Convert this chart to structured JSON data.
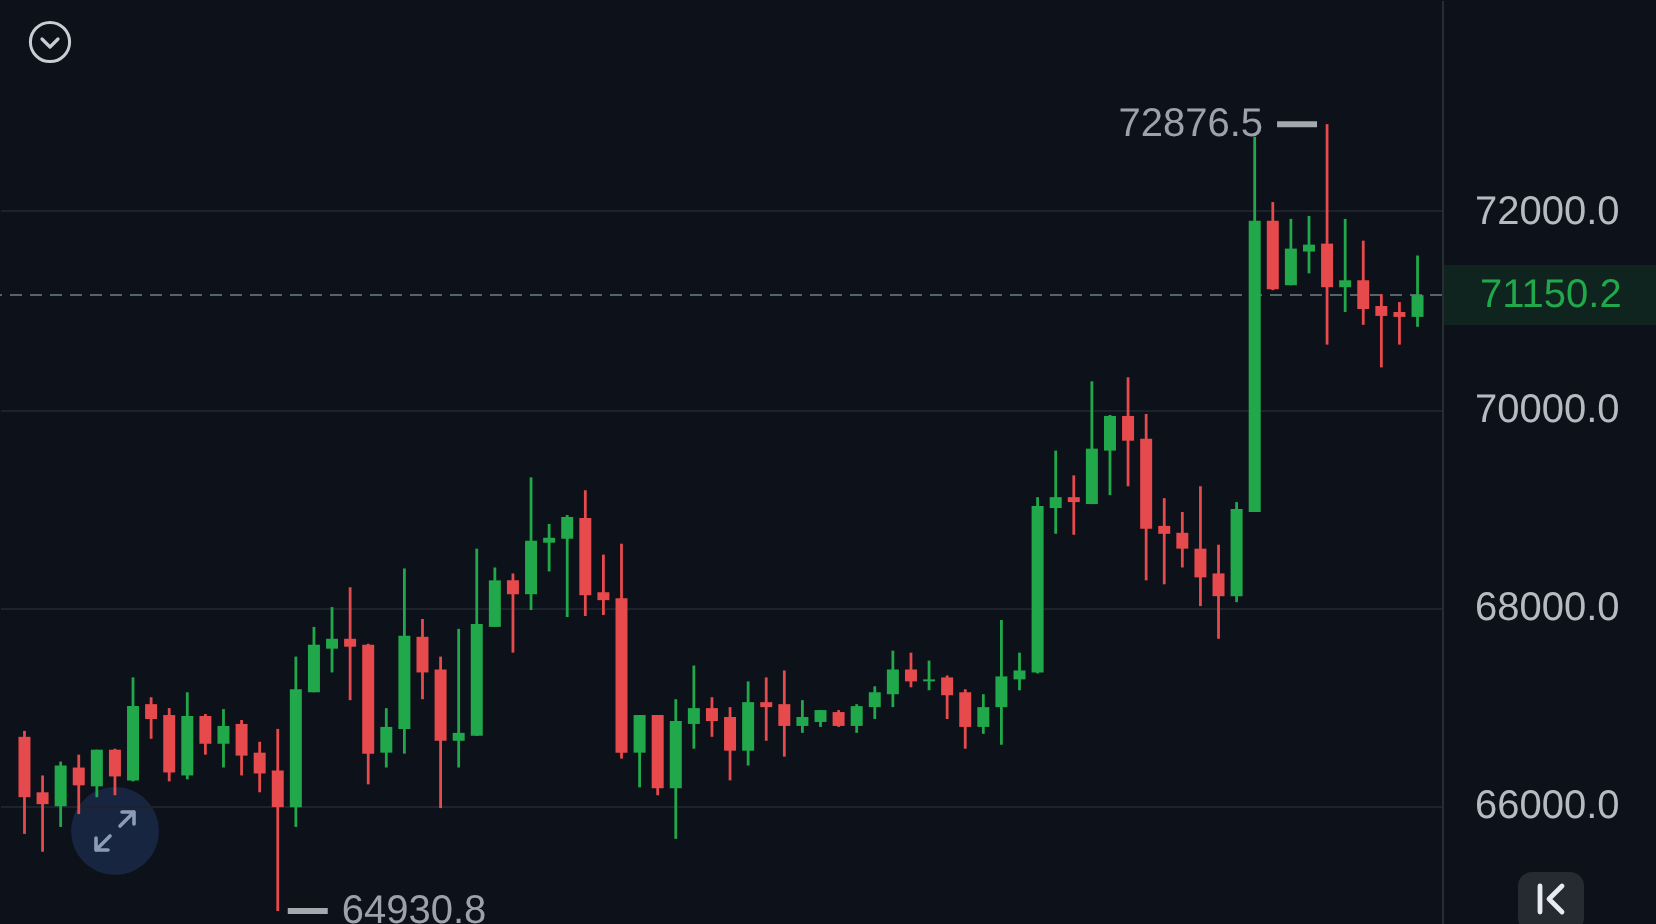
{
  "chart_data": {
    "type": "candlestick",
    "categories": [
      null,
      null,
      null,
      null,
      null,
      null,
      null,
      null,
      null,
      null,
      null,
      null,
      null,
      null,
      null,
      null,
      null,
      null,
      null,
      null,
      null,
      null,
      null,
      null,
      null,
      null,
      null,
      null,
      null,
      null,
      null,
      null,
      null,
      null,
      null,
      null,
      null,
      null,
      null,
      null,
      null,
      null,
      null,
      null,
      null,
      null,
      null,
      null,
      null,
      null,
      null,
      null,
      null,
      null,
      null,
      null,
      null,
      null,
      null,
      null,
      null,
      null,
      null,
      null,
      null,
      null,
      null,
      null,
      null,
      null,
      null,
      null,
      null,
      null,
      null,
      null,
      null,
      null
    ],
    "ohlc": [
      [
        66690,
        66750,
        65710,
        66080
      ],
      [
        66130,
        66300,
        65530,
        66010
      ],
      [
        65990,
        66440,
        65780,
        66400
      ],
      [
        66380,
        66510,
        65910,
        66200
      ],
      [
        66190,
        66560,
        66080,
        66560
      ],
      [
        66560,
        66570,
        66100,
        66290
      ],
      [
        66250,
        67290,
        66240,
        67000
      ],
      [
        67020,
        67090,
        66670,
        66870
      ],
      [
        66910,
        66980,
        66240,
        66330
      ],
      [
        66300,
        67140,
        66260,
        66900
      ],
      [
        66900,
        66920,
        66510,
        66620
      ],
      [
        66620,
        66970,
        66380,
        66800
      ],
      [
        66820,
        66860,
        66300,
        66500
      ],
      [
        66530,
        66640,
        66130,
        66320
      ],
      [
        66350,
        66770,
        64930.8,
        65980
      ],
      [
        65980,
        67500,
        65780,
        67170
      ],
      [
        67140,
        67800,
        67140,
        67620
      ],
      [
        67580,
        68000,
        67340,
        67680
      ],
      [
        67680,
        68200,
        67060,
        67600
      ],
      [
        67620,
        67630,
        66210,
        66520
      ],
      [
        66530,
        66980,
        66380,
        66790
      ],
      [
        66770,
        68390,
        66520,
        67710
      ],
      [
        67700,
        67880,
        67070,
        67340
      ],
      [
        67370,
        67500,
        65970,
        66650
      ],
      [
        66650,
        67780,
        66380,
        66730
      ],
      [
        66700,
        68590,
        66700,
        67830
      ],
      [
        67800,
        68400,
        67800,
        68270
      ],
      [
        68270,
        68340,
        67540,
        68130
      ],
      [
        68130,
        69310,
        67970,
        68670
      ],
      [
        68650,
        68840,
        68360,
        68700
      ],
      [
        68690,
        68930,
        67900,
        68910
      ],
      [
        68900,
        69180,
        67910,
        68120
      ],
      [
        68150,
        68530,
        67920,
        68070
      ],
      [
        68090,
        68640,
        66470,
        66530
      ],
      [
        66530,
        66910,
        66180,
        66910
      ],
      [
        66910,
        66910,
        66100,
        66170
      ],
      [
        66170,
        67070,
        65660,
        66850
      ],
      [
        66820,
        67410,
        66570,
        66980
      ],
      [
        66980,
        67090,
        66690,
        66850
      ],
      [
        66890,
        66990,
        66250,
        66550
      ],
      [
        66550,
        67250,
        66400,
        67040
      ],
      [
        67040,
        67290,
        66650,
        66990
      ],
      [
        67020,
        67360,
        66490,
        66800
      ],
      [
        66800,
        67060,
        66730,
        66890
      ],
      [
        66840,
        66960,
        66790,
        66960
      ],
      [
        66940,
        66960,
        66790,
        66800
      ],
      [
        66800,
        67020,
        66730,
        67000
      ],
      [
        66990,
        67200,
        66870,
        67140
      ],
      [
        67120,
        67560,
        66990,
        67370
      ],
      [
        67370,
        67540,
        67190,
        67250
      ],
      [
        67250,
        67460,
        67160,
        67270
      ],
      [
        67290,
        67310,
        66870,
        67110
      ],
      [
        67140,
        67170,
        66570,
        66790
      ],
      [
        66790,
        67120,
        66720,
        66990
      ],
      [
        66990,
        67870,
        66610,
        67300
      ],
      [
        67270,
        67540,
        67160,
        67360
      ],
      [
        67340,
        69110,
        67330,
        69020
      ],
      [
        69000,
        69580,
        68740,
        69110
      ],
      [
        69110,
        69330,
        68730,
        69060
      ],
      [
        69040,
        70280,
        69040,
        69600
      ],
      [
        69580,
        69940,
        69130,
        69930
      ],
      [
        69930,
        70320,
        69220,
        69680
      ],
      [
        69700,
        69950,
        68270,
        68790
      ],
      [
        68820,
        69100,
        68230,
        68740
      ],
      [
        68750,
        68960,
        68400,
        68590
      ],
      [
        68590,
        69220,
        68010,
        68300
      ],
      [
        68340,
        68630,
        67680,
        68110
      ],
      [
        68110,
        69060,
        68050,
        68990
      ],
      [
        68960,
        72750,
        68960,
        71900
      ],
      [
        71900,
        72090,
        71200,
        71210
      ],
      [
        71250,
        71920,
        71250,
        71620
      ],
      [
        71590,
        71950,
        71370,
        71660
      ],
      [
        71670,
        72876.5,
        70650,
        71230
      ],
      [
        71230,
        71920,
        70980,
        71300
      ],
      [
        71300,
        71700,
        70850,
        71010
      ],
      [
        71040,
        71160,
        70420,
        70940
      ],
      [
        70980,
        71080,
        70650,
        70930
      ],
      [
        70930,
        71550,
        70830,
        71150.2
      ]
    ],
    "colors": [
      "#e64a4c",
      "#e64a4c",
      "#21a84a",
      "#e64a4c",
      "#21a84a",
      "#e64a4c",
      "#21a84a",
      "#e64a4c",
      "#e64a4c",
      "#21a84a",
      "#e64a4c",
      "#21a84a",
      "#e64a4c",
      "#e64a4c",
      "#e64a4c",
      "#21a84a",
      "#21a84a",
      "#21a84a",
      "#e64a4c",
      "#e64a4c",
      "#21a84a",
      "#21a84a",
      "#e64a4c",
      "#e64a4c",
      "#21a84a",
      "#21a84a",
      "#21a84a",
      "#e64a4c",
      "#21a84a",
      "#21a84a",
      "#21a84a",
      "#e64a4c",
      "#e64a4c",
      "#e64a4c",
      "#21a84a",
      "#e64a4c",
      "#21a84a",
      "#21a84a",
      "#e64a4c",
      "#e64a4c",
      "#21a84a",
      "#e64a4c",
      "#e64a4c",
      "#21a84a",
      "#21a84a",
      "#e64a4c",
      "#21a84a",
      "#21a84a",
      "#21a84a",
      "#e64a4c",
      "#21a84a",
      "#e64a4c",
      "#e64a4c",
      "#21a84a",
      "#21a84a",
      "#21a84a",
      "#21a84a",
      "#21a84a",
      "#e64a4c",
      "#21a84a",
      "#21a84a",
      "#e64a4c",
      "#e64a4c",
      "#e64a4c",
      "#e64a4c",
      "#e64a4c",
      "#e64a4c",
      "#21a84a",
      "#21a84a",
      "#e64a4c",
      "#21a84a",
      "#21a84a",
      "#e64a4c",
      "#21a84a",
      "#e64a4c",
      "#e64a4c",
      "#e64a4c",
      "#21a84a"
    ],
    "ylim": [
      64800,
      74130
    ],
    "yticks": [
      {
        "value": 66000,
        "label": "66000.0"
      },
      {
        "value": 68000,
        "label": "68000.0"
      },
      {
        "value": 70000,
        "label": "70000.0"
      },
      {
        "value": 72000,
        "label": "72000.0"
      }
    ],
    "grid": "y",
    "ref_lines": [
      {
        "axis": "y",
        "value": 71150.2,
        "label": "71150.2",
        "color": "#55656c",
        "line_style": "dashed"
      }
    ],
    "annotations": [
      "72876.5",
      "64930.8"
    ]
  }
}
